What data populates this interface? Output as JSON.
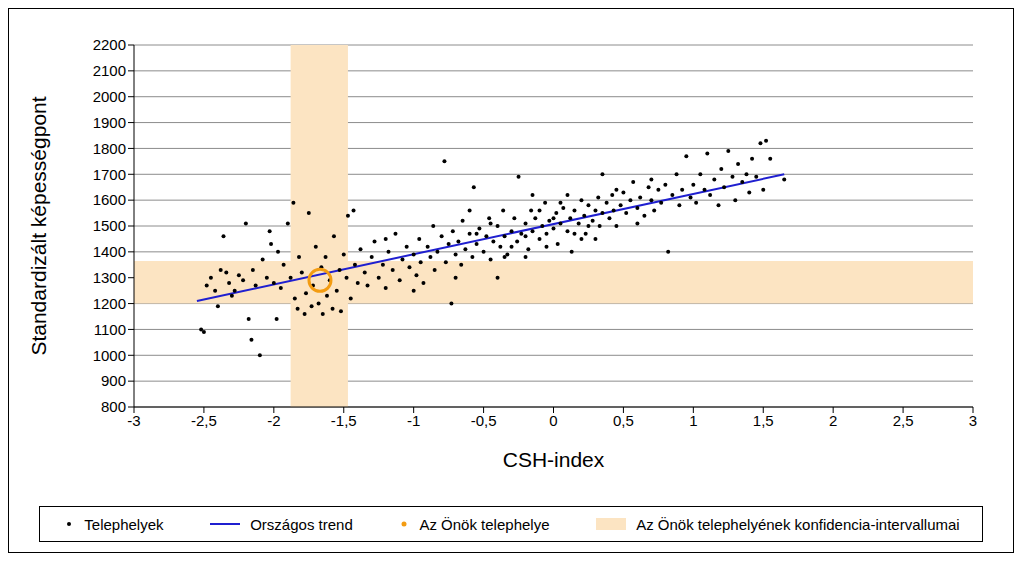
{
  "chart_data": {
    "type": "scatter",
    "x_label": "CSH-index",
    "y_label": "Standardizált képességpont",
    "xlim": [
      -3,
      3
    ],
    "xticks": [
      -3,
      {
        "value": -2.5,
        "label": "-2,5"
      },
      -2,
      {
        "value": -1.5,
        "label": "-1,5"
      },
      -1,
      {
        "value": -0.5,
        "label": "-0,5"
      },
      0,
      {
        "value": 0.5,
        "label": "0,5"
      },
      1,
      {
        "value": 1.5,
        "label": "1,5"
      },
      2,
      {
        "value": 2.5,
        "label": "2,5"
      },
      3
    ],
    "ylim": [
      800,
      2200
    ],
    "yticks": [
      800,
      900,
      1000,
      1100,
      1200,
      1300,
      1400,
      1500,
      1600,
      1700,
      1800,
      1900,
      2000,
      2100,
      2200
    ],
    "grid": true,
    "legend": "bottom",
    "series": [
      {
        "name": "Telephelyek",
        "type": "scatter",
        "marker": "dot",
        "color": "#000000",
        "x": [
          -2.52,
          -2.5,
          -2.48,
          -2.45,
          -2.42,
          -2.4,
          -2.38,
          -2.36,
          -2.34,
          -2.32,
          -2.3,
          -2.28,
          -2.25,
          -2.22,
          -2.2,
          -2.18,
          -2.16,
          -2.15,
          -2.13,
          -2.1,
          -2.08,
          -2.05,
          -2.03,
          -2.02,
          -2.0,
          -1.98,
          -1.97,
          -1.95,
          -1.93,
          -1.9,
          -1.88,
          -1.86,
          -1.85,
          -1.83,
          -1.82,
          -1.8,
          -1.78,
          -1.77,
          -1.75,
          -1.73,
          -1.72,
          -1.7,
          -1.68,
          -1.66,
          -1.65,
          -1.63,
          -1.62,
          -1.6,
          -1.58,
          -1.57,
          -1.55,
          -1.53,
          -1.52,
          -1.5,
          -1.48,
          -1.47,
          -1.45,
          -1.43,
          -1.42,
          -1.4,
          -1.38,
          -1.35,
          -1.33,
          -1.3,
          -1.28,
          -1.25,
          -1.22,
          -1.2,
          -1.18,
          -1.15,
          -1.13,
          -1.1,
          -1.08,
          -1.05,
          -1.03,
          -1.0,
          -0.98,
          -0.96,
          -0.95,
          -0.93,
          -0.9,
          -0.88,
          -0.86,
          -0.85,
          -0.83,
          -0.8,
          -0.78,
          -0.77,
          -0.75,
          -0.73,
          -0.72,
          -0.7,
          -0.68,
          -0.66,
          -0.65,
          -0.63,
          -0.6,
          -0.58,
          -0.57,
          -0.55,
          -0.53,
          -0.5,
          -0.48,
          -0.46,
          -0.45,
          -0.43,
          -0.4,
          -0.38,
          -0.36,
          -0.35,
          -0.33,
          -0.3,
          -0.28,
          -0.26,
          -0.25,
          -0.23,
          -0.2,
          -0.18,
          -0.16,
          -0.15,
          -0.13,
          -0.1,
          -0.08,
          -0.06,
          -0.05,
          -0.03,
          0.0,
          0.02,
          0.03,
          0.05,
          0.07,
          0.1,
          0.12,
          0.13,
          0.15,
          0.18,
          0.2,
          0.22,
          0.23,
          0.25,
          0.28,
          0.3,
          0.32,
          0.33,
          0.35,
          0.38,
          0.4,
          0.42,
          0.43,
          0.45,
          0.48,
          0.5,
          0.52,
          0.55,
          0.57,
          0.6,
          0.62,
          0.65,
          0.68,
          0.7,
          0.72,
          0.75,
          0.77,
          0.8,
          0.82,
          0.85,
          0.88,
          0.9,
          0.92,
          0.95,
          0.98,
          1.0,
          1.02,
          1.05,
          1.08,
          1.1,
          1.12,
          1.15,
          1.18,
          1.2,
          1.22,
          1.25,
          1.28,
          1.3,
          1.32,
          1.35,
          1.38,
          1.4,
          1.42,
          1.45,
          1.48,
          1.5,
          1.52,
          1.55,
          -0.4,
          -0.2,
          0.1,
          -0.6,
          0.3,
          1.65,
          -0.45,
          -0.3,
          -0.1,
          0.0,
          0.15,
          -0.2,
          0.05,
          0.25,
          -0.55,
          -0.05,
          -1.0,
          -1.2,
          -0.7,
          0.45,
          0.6,
          0.35,
          -0.15,
          0.2,
          -0.35,
          0.7
        ],
        "values": [
          1100,
          1090,
          1270,
          1300,
          1250,
          1190,
          1330,
          1460,
          1320,
          1280,
          1230,
          1250,
          1310,
          1290,
          1510,
          1140,
          1060,
          1330,
          1270,
          1000,
          1370,
          1300,
          1480,
          1430,
          1280,
          1140,
          1400,
          1260,
          1350,
          1510,
          1300,
          1590,
          1220,
          1180,
          1380,
          1320,
          1160,
          1240,
          1550,
          1190,
          1270,
          1420,
          1200,
          1340,
          1160,
          1380,
          1230,
          1290,
          1180,
          1460,
          1250,
          1330,
          1170,
          1390,
          1300,
          1540,
          1220,
          1560,
          1350,
          1280,
          1410,
          1320,
          1270,
          1380,
          1440,
          1300,
          1350,
          1260,
          1400,
          1330,
          1470,
          1290,
          1370,
          1420,
          1340,
          1390,
          1310,
          1450,
          1360,
          1280,
          1420,
          1380,
          1500,
          1330,
          1400,
          1460,
          1750,
          1360,
          1430,
          1200,
          1480,
          1390,
          1440,
          1350,
          1520,
          1410,
          1470,
          1380,
          1650,
          1430,
          1490,
          1400,
          1460,
          1530,
          1370,
          1440,
          1500,
          1420,
          1560,
          1460,
          1390,
          1480,
          1530,
          1440,
          1690,
          1470,
          1510,
          1410,
          1560,
          1480,
          1530,
          1450,
          1500,
          1590,
          1470,
          1520,
          1490,
          1550,
          1430,
          1510,
          1570,
          1480,
          1530,
          1400,
          1560,
          1510,
          1600,
          1540,
          1470,
          1580,
          1520,
          1560,
          1610,
          1500,
          1550,
          1590,
          1530,
          1620,
          1560,
          1500,
          1580,
          1630,
          1550,
          1600,
          1670,
          1570,
          1610,
          1540,
          1650,
          1600,
          1560,
          1640,
          1590,
          1660,
          1400,
          1620,
          1700,
          1580,
          1640,
          1770,
          1610,
          1660,
          1590,
          1700,
          1640,
          1780,
          1620,
          1680,
          1580,
          1720,
          1650,
          1790,
          1690,
          1600,
          1740,
          1670,
          1700,
          1630,
          1760,
          1690,
          1820,
          1640,
          1830,
          1760,
          1300,
          1380,
          1620,
          1560,
          1450,
          1680,
          1510,
          1420,
          1560,
          1530,
          1470,
          1460,
          1590,
          1500,
          1470,
          1420,
          1250,
          1450,
          1300,
          1640,
          1510,
          1700,
          1620,
          1450,
          1380,
          1680
        ]
      },
      {
        "name": "Országos trend",
        "type": "line",
        "color": "#1f1fd0",
        "x": [
          -2.55,
          1.65
        ],
        "values": [
          1210,
          1700
        ]
      },
      {
        "name": "Az Önök telephelye",
        "type": "scatter",
        "marker": "circle",
        "color": "#f39c12",
        "x": [
          -1.67
        ],
        "values": [
          1290
        ]
      },
      {
        "name": "Az Önök telephelyének konfidencia-intervallumai",
        "type": "band",
        "color": "#fce4c2",
        "x_range": [
          -1.88,
          -1.47
        ],
        "y_range": [
          1200,
          1365
        ]
      }
    ]
  }
}
